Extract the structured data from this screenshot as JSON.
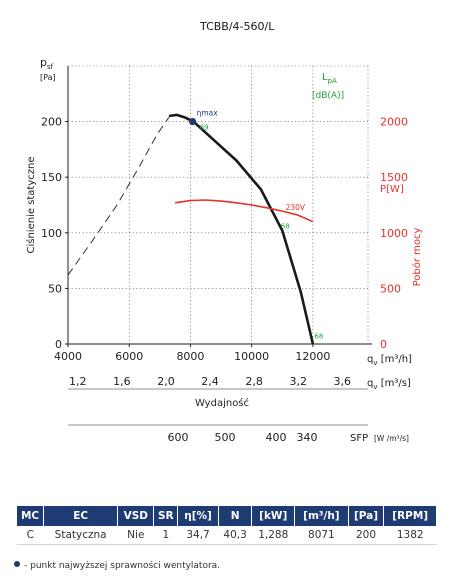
{
  "chart_data": {
    "type": "line",
    "title": "TCBB/4-560/L",
    "y_label_symbol": "p",
    "y_label_sub": "sf",
    "y_unit": "[Pa]",
    "ylabel": "Ciśnienie statyczne",
    "ylim": [
      0,
      250
    ],
    "y_ticks": [
      "0",
      "50",
      "100",
      "150",
      "200"
    ],
    "x_ticks_m3h": [
      "4000",
      "6000",
      "8000",
      "10000",
      "12000"
    ],
    "x_label_m3h_symbol": "q",
    "x_label_m3h_unit": "[m³/h]",
    "x_ticks_m3s": [
      "1,2",
      "1,6",
      "2,0",
      "2,4",
      "2,8",
      "3,2",
      "3,6"
    ],
    "x_label_m3s_symbol": "q",
    "x_label_m3s_unit": "[m³/s]",
    "xlabel": "Wydajność",
    "xlim": [
      4000,
      13800
    ],
    "sfp_ticks": [
      "600",
      "500",
      "400",
      "340"
    ],
    "sfp_label": "SFP",
    "sfp_unit": "[W /m³/s]",
    "lpa_label": "L",
    "lpa_sub": "pA",
    "lpa_unit": "[dB(A)]",
    "power_label": "P[W]",
    "power_axis_title": "Pobór mocy",
    "power_ticks": [
      "0",
      "500",
      "1000",
      "1500",
      "2000"
    ],
    "power_lim": [
      0,
      2500
    ],
    "series": [
      {
        "role": "stall-dashed",
        "x": [
          4000,
          4800,
          5600,
          6400,
          6900,
          7300
        ],
        "y": [
          62,
          93,
          125,
          163,
          188,
          204
        ]
      },
      {
        "role": "pressure",
        "x": [
          7300,
          7550,
          7800,
          8100,
          8700,
          9500,
          10300,
          11000,
          11600,
          12000
        ],
        "y": [
          205,
          206,
          204,
          200,
          185,
          165,
          139,
          102,
          47,
          0
        ]
      },
      {
        "role": "power",
        "name": "230V",
        "x": [
          7500,
          8000,
          8500,
          9000,
          9500,
          10000,
          10500,
          11000,
          11500,
          12000
        ],
        "y": [
          1270,
          1290,
          1295,
          1285,
          1270,
          1250,
          1225,
          1195,
          1160,
          1100
        ]
      }
    ],
    "eta_max": {
      "label": "ηmax",
      "x": 8071,
      "y": 200
    },
    "sound_labels": [
      {
        "text": "69",
        "x": 8300,
        "y": 193
      },
      {
        "text": "68",
        "x": 10950,
        "y": 104
      },
      {
        "text": "68",
        "x": 12050,
        "y": 5
      }
    ],
    "colors": {
      "pressure": "#1a1a1a",
      "power": "#e8302a",
      "eta_dot": "#1f3b73",
      "sound": "#2a9a3a",
      "grid": "#555555"
    }
  },
  "specs": {
    "headers": [
      "MC",
      "EC",
      "VSD",
      "SR",
      "η[%]",
      "N",
      "[kW]",
      "[m³/h]",
      "[Pa]",
      "[RPM]"
    ],
    "values": [
      "C",
      "Statyczna",
      "Nie",
      "1",
      "34,7",
      "40,3",
      "1,288",
      "8071",
      "200",
      "1382"
    ]
  },
  "footnote": "- punkt najwyższej sprawności wentylatora."
}
